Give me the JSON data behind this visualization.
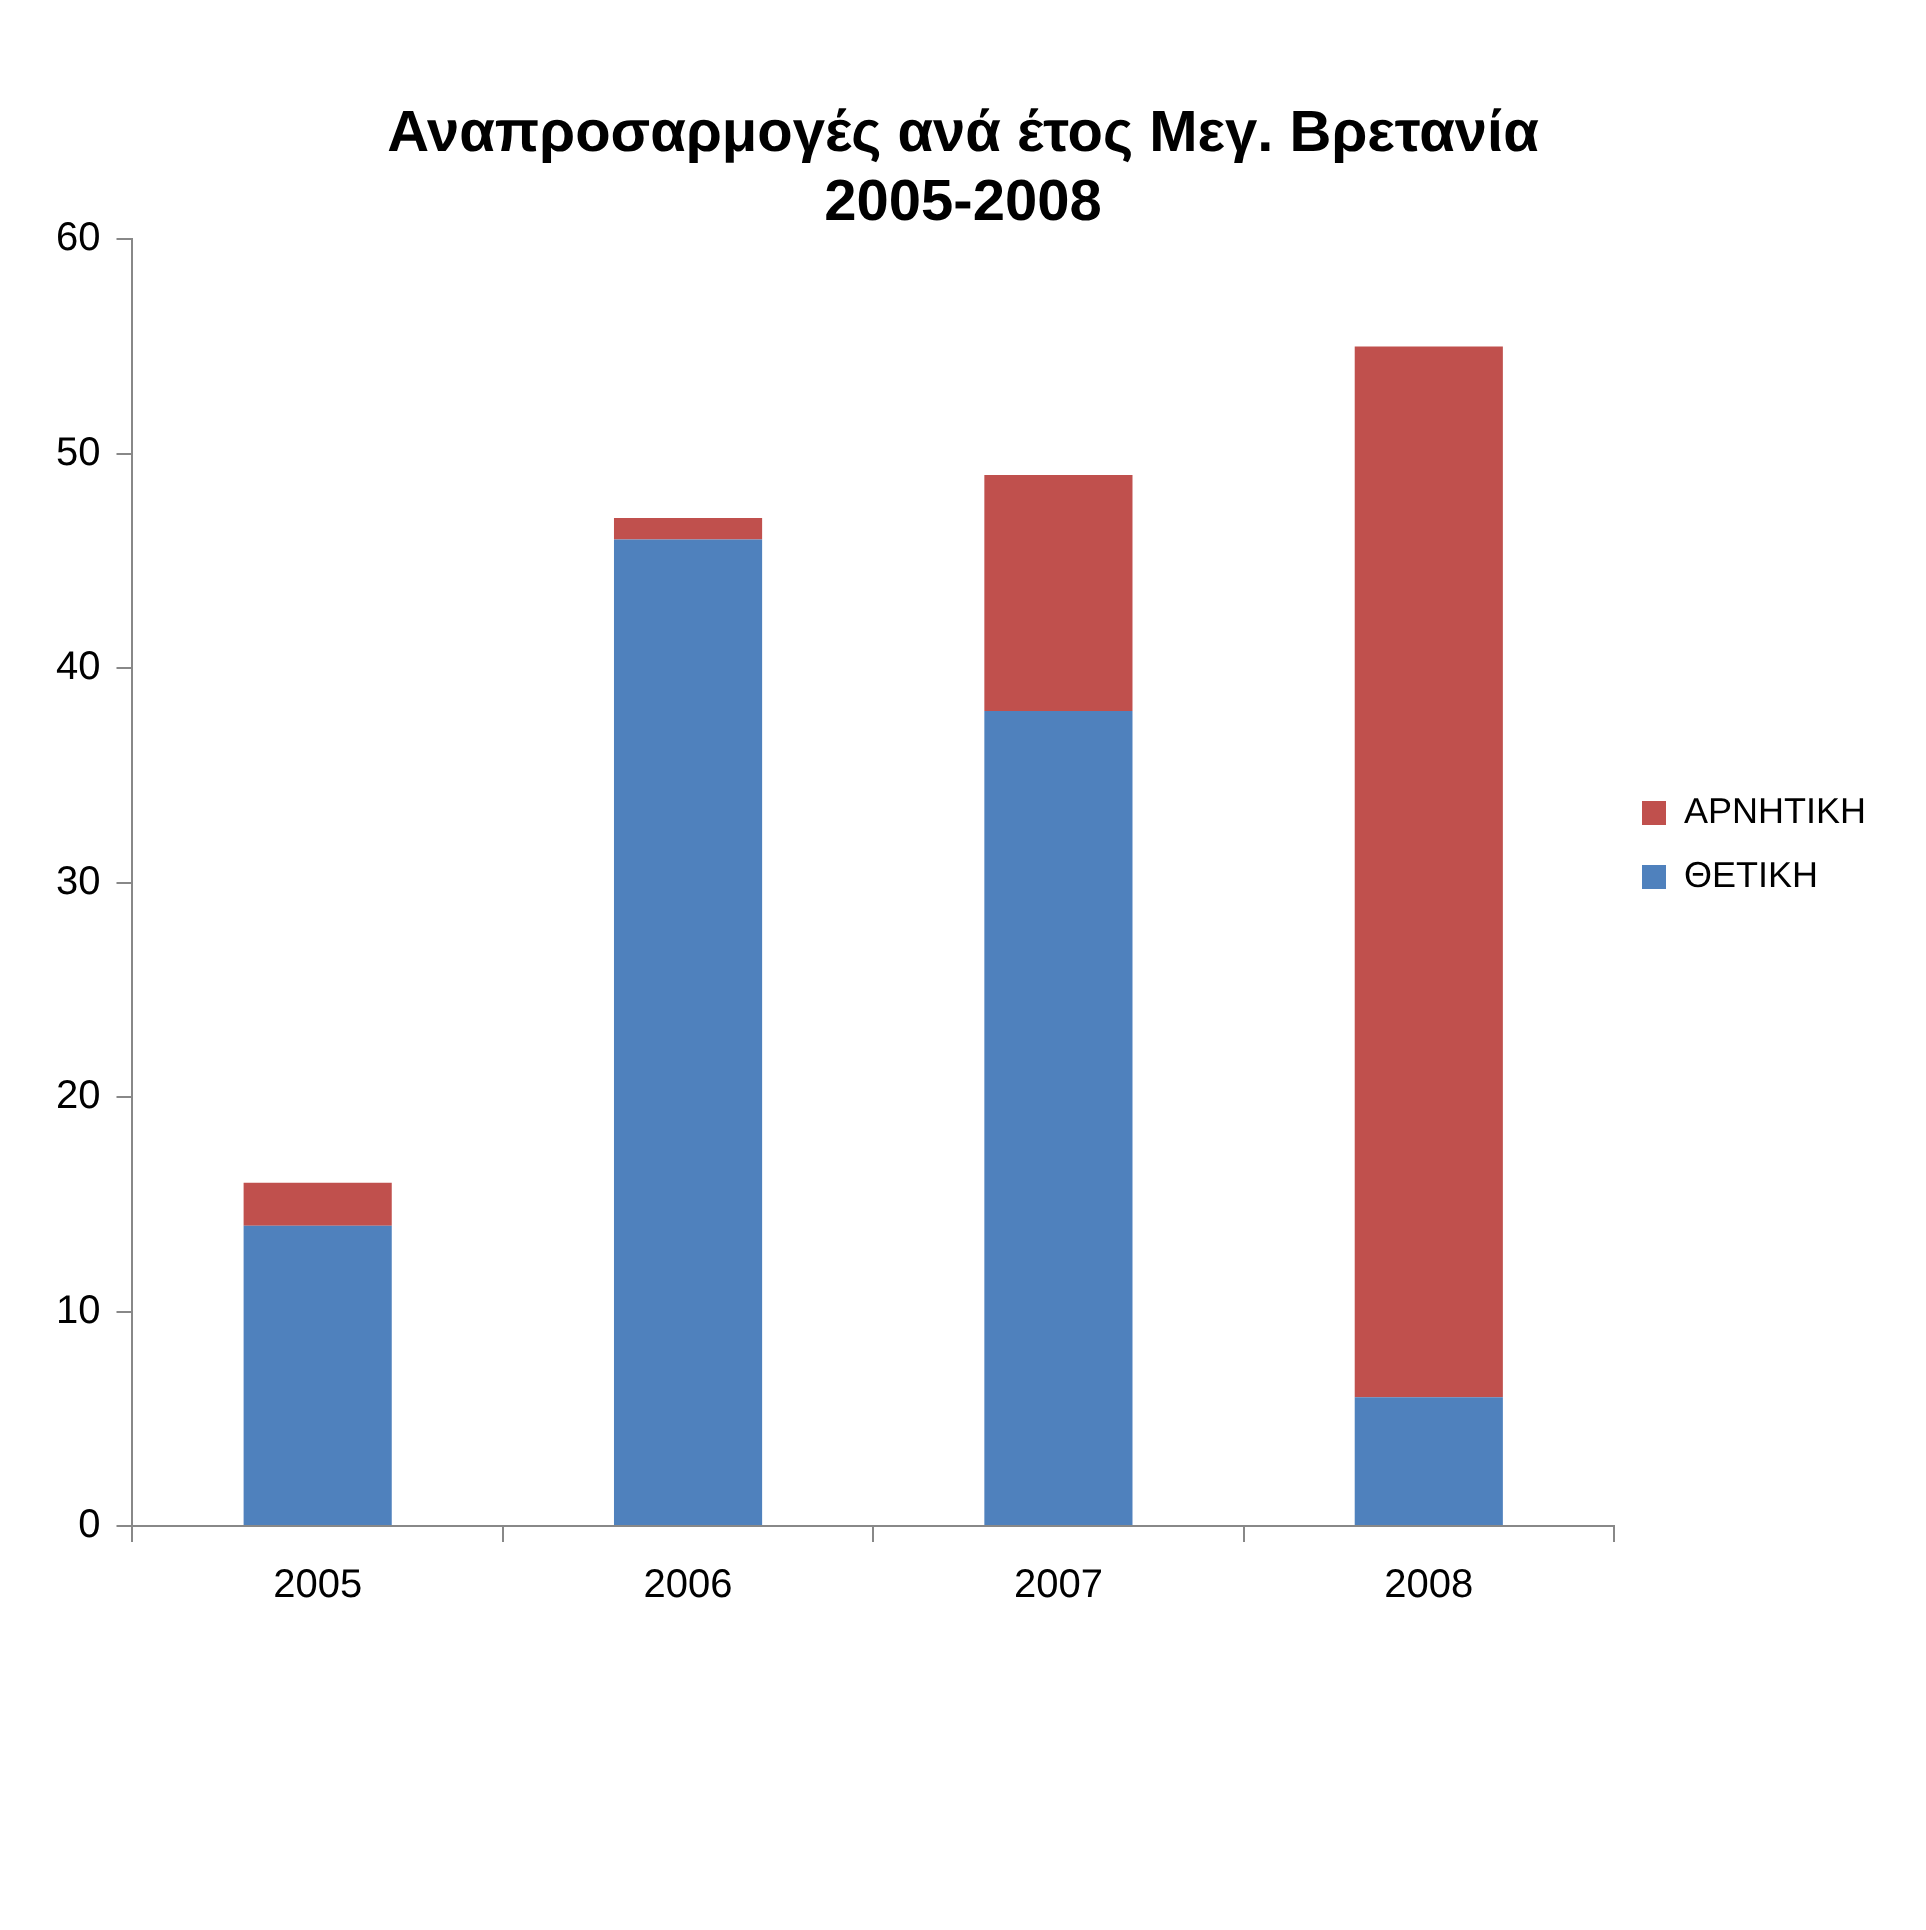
{
  "chart_data": {
    "type": "bar",
    "title": "Αναπροσαρμογές ανά έτος Μεγ. Βρετανία\n2005-2008",
    "categories": [
      "2005",
      "2006",
      "2007",
      "2008"
    ],
    "stacked": true,
    "series": [
      {
        "name": "ΘΕΤΙΚΗ",
        "color": "#4f81bd",
        "values": [
          14,
          46,
          38,
          6
        ]
      },
      {
        "name": "ΑΡΝΗΤΙΚΗ",
        "color": "#c0504d",
        "values": [
          2,
          1,
          11,
          49
        ]
      }
    ],
    "ylim": [
      0,
      60
    ],
    "yticks": [
      0,
      10,
      20,
      30,
      40,
      50,
      60
    ],
    "grid": false,
    "legend": "right"
  }
}
